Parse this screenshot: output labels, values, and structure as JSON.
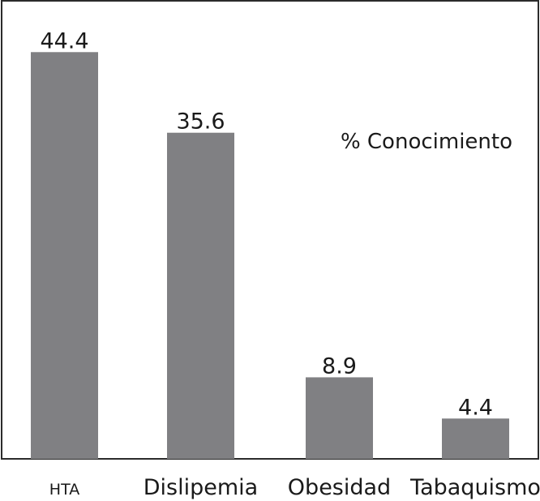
{
  "chart_data": {
    "type": "bar",
    "categories": [
      "HTA",
      "Dislipemia",
      "Obesidad",
      "Tabaquismo"
    ],
    "series": [
      {
        "name": "% Conocimiento",
        "values": [
          44.4,
          35.6,
          8.9,
          4.4
        ],
        "color": "#808083"
      }
    ],
    "data_labels": [
      "44.4",
      "35.6",
      "8.9",
      "4.4"
    ],
    "ylim": [
      0,
      50
    ],
    "grid": false,
    "legend_placement": "top-right",
    "frame_color": "#2b2b2b",
    "bar_color": "#808083"
  }
}
